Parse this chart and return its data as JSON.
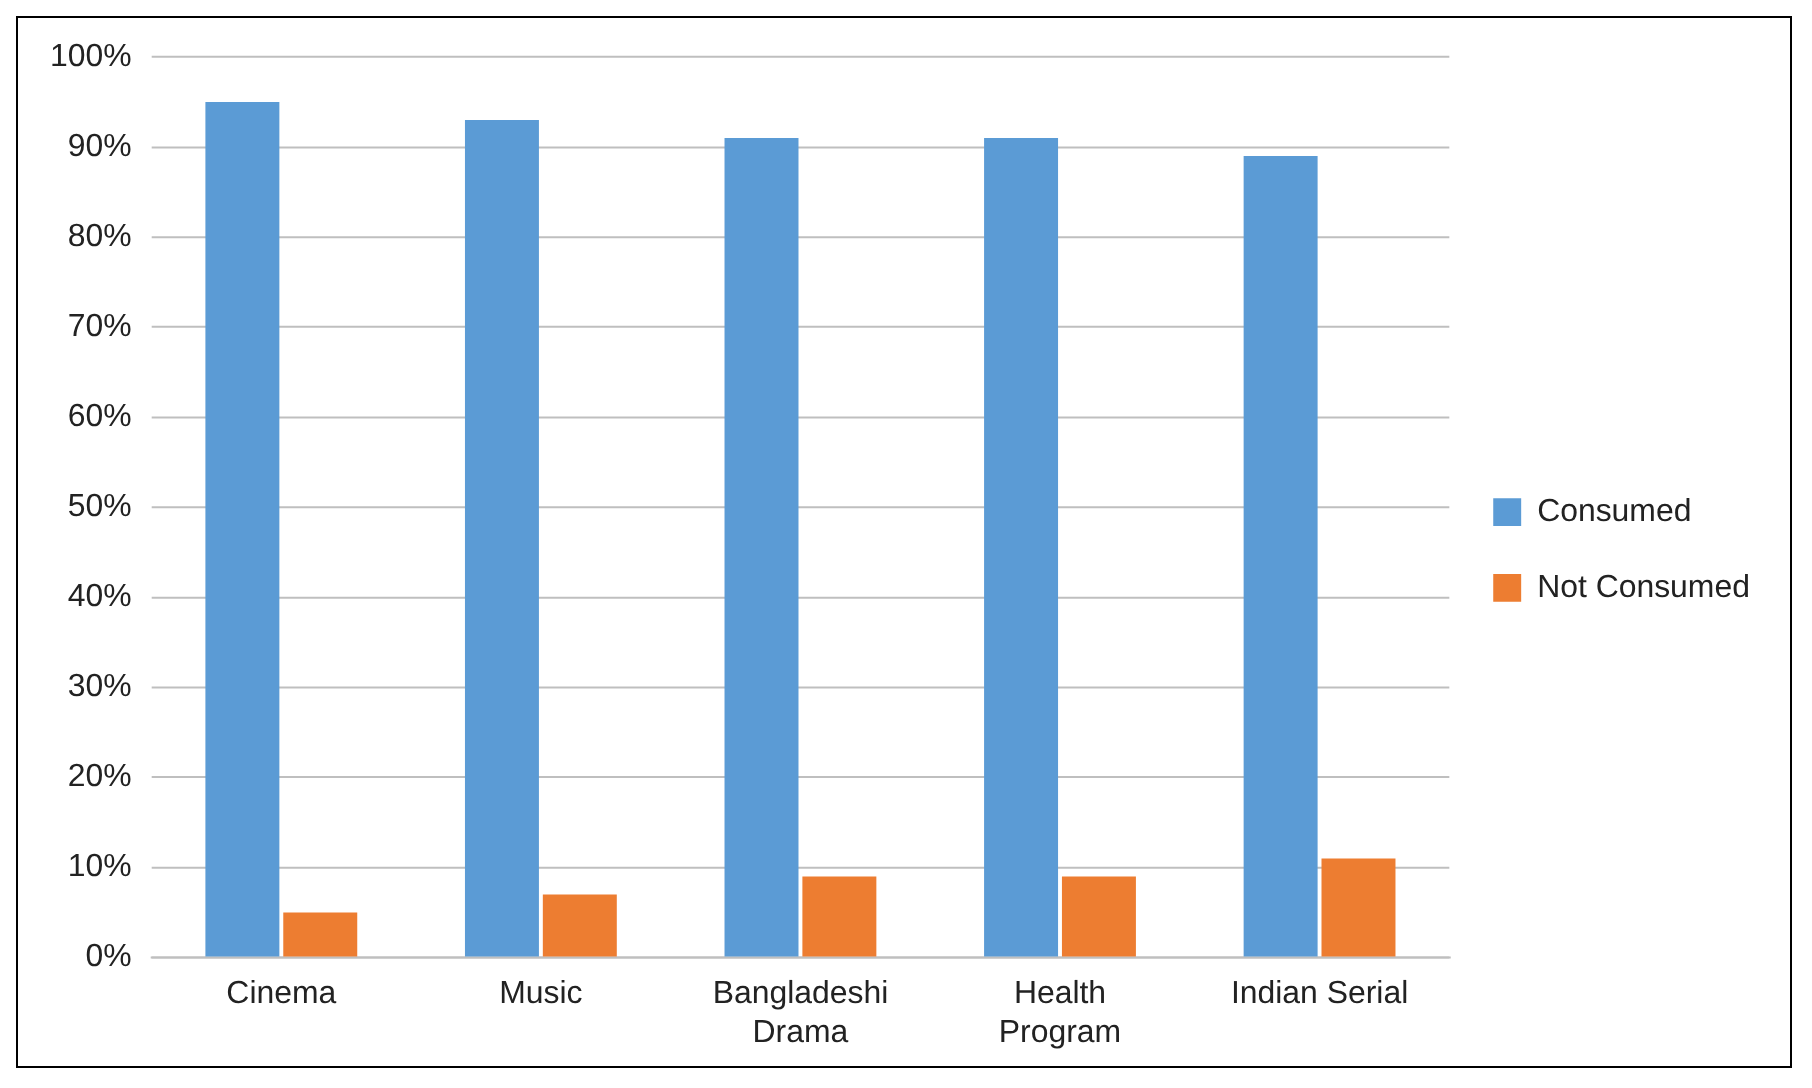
{
  "chart_data": {
    "type": "bar",
    "categories": [
      "Cinema",
      "Music",
      "Bangladeshi Drama",
      "Health Program",
      "Indian Serial"
    ],
    "series": [
      {
        "name": "Consumed",
        "color": "#5b9bd5",
        "values": [
          95,
          93,
          91,
          91,
          89
        ]
      },
      {
        "name": "Not Consumed",
        "color": "#ed7d31",
        "values": [
          5,
          7,
          9,
          9,
          11
        ]
      }
    ],
    "ylim": [
      0,
      100
    ],
    "yticks": [
      {
        "value": 0,
        "label": "0%"
      },
      {
        "value": 10,
        "label": "10%"
      },
      {
        "value": 20,
        "label": "20%"
      },
      {
        "value": 30,
        "label": "30%"
      },
      {
        "value": 40,
        "label": "40%"
      },
      {
        "value": 50,
        "label": "50%"
      },
      {
        "value": 60,
        "label": "60%"
      },
      {
        "value": 70,
        "label": "70%"
      },
      {
        "value": 80,
        "label": "80%"
      },
      {
        "value": 90,
        "label": "90%"
      },
      {
        "value": 100,
        "label": "100%"
      }
    ],
    "grid": "y",
    "legend": "right"
  }
}
